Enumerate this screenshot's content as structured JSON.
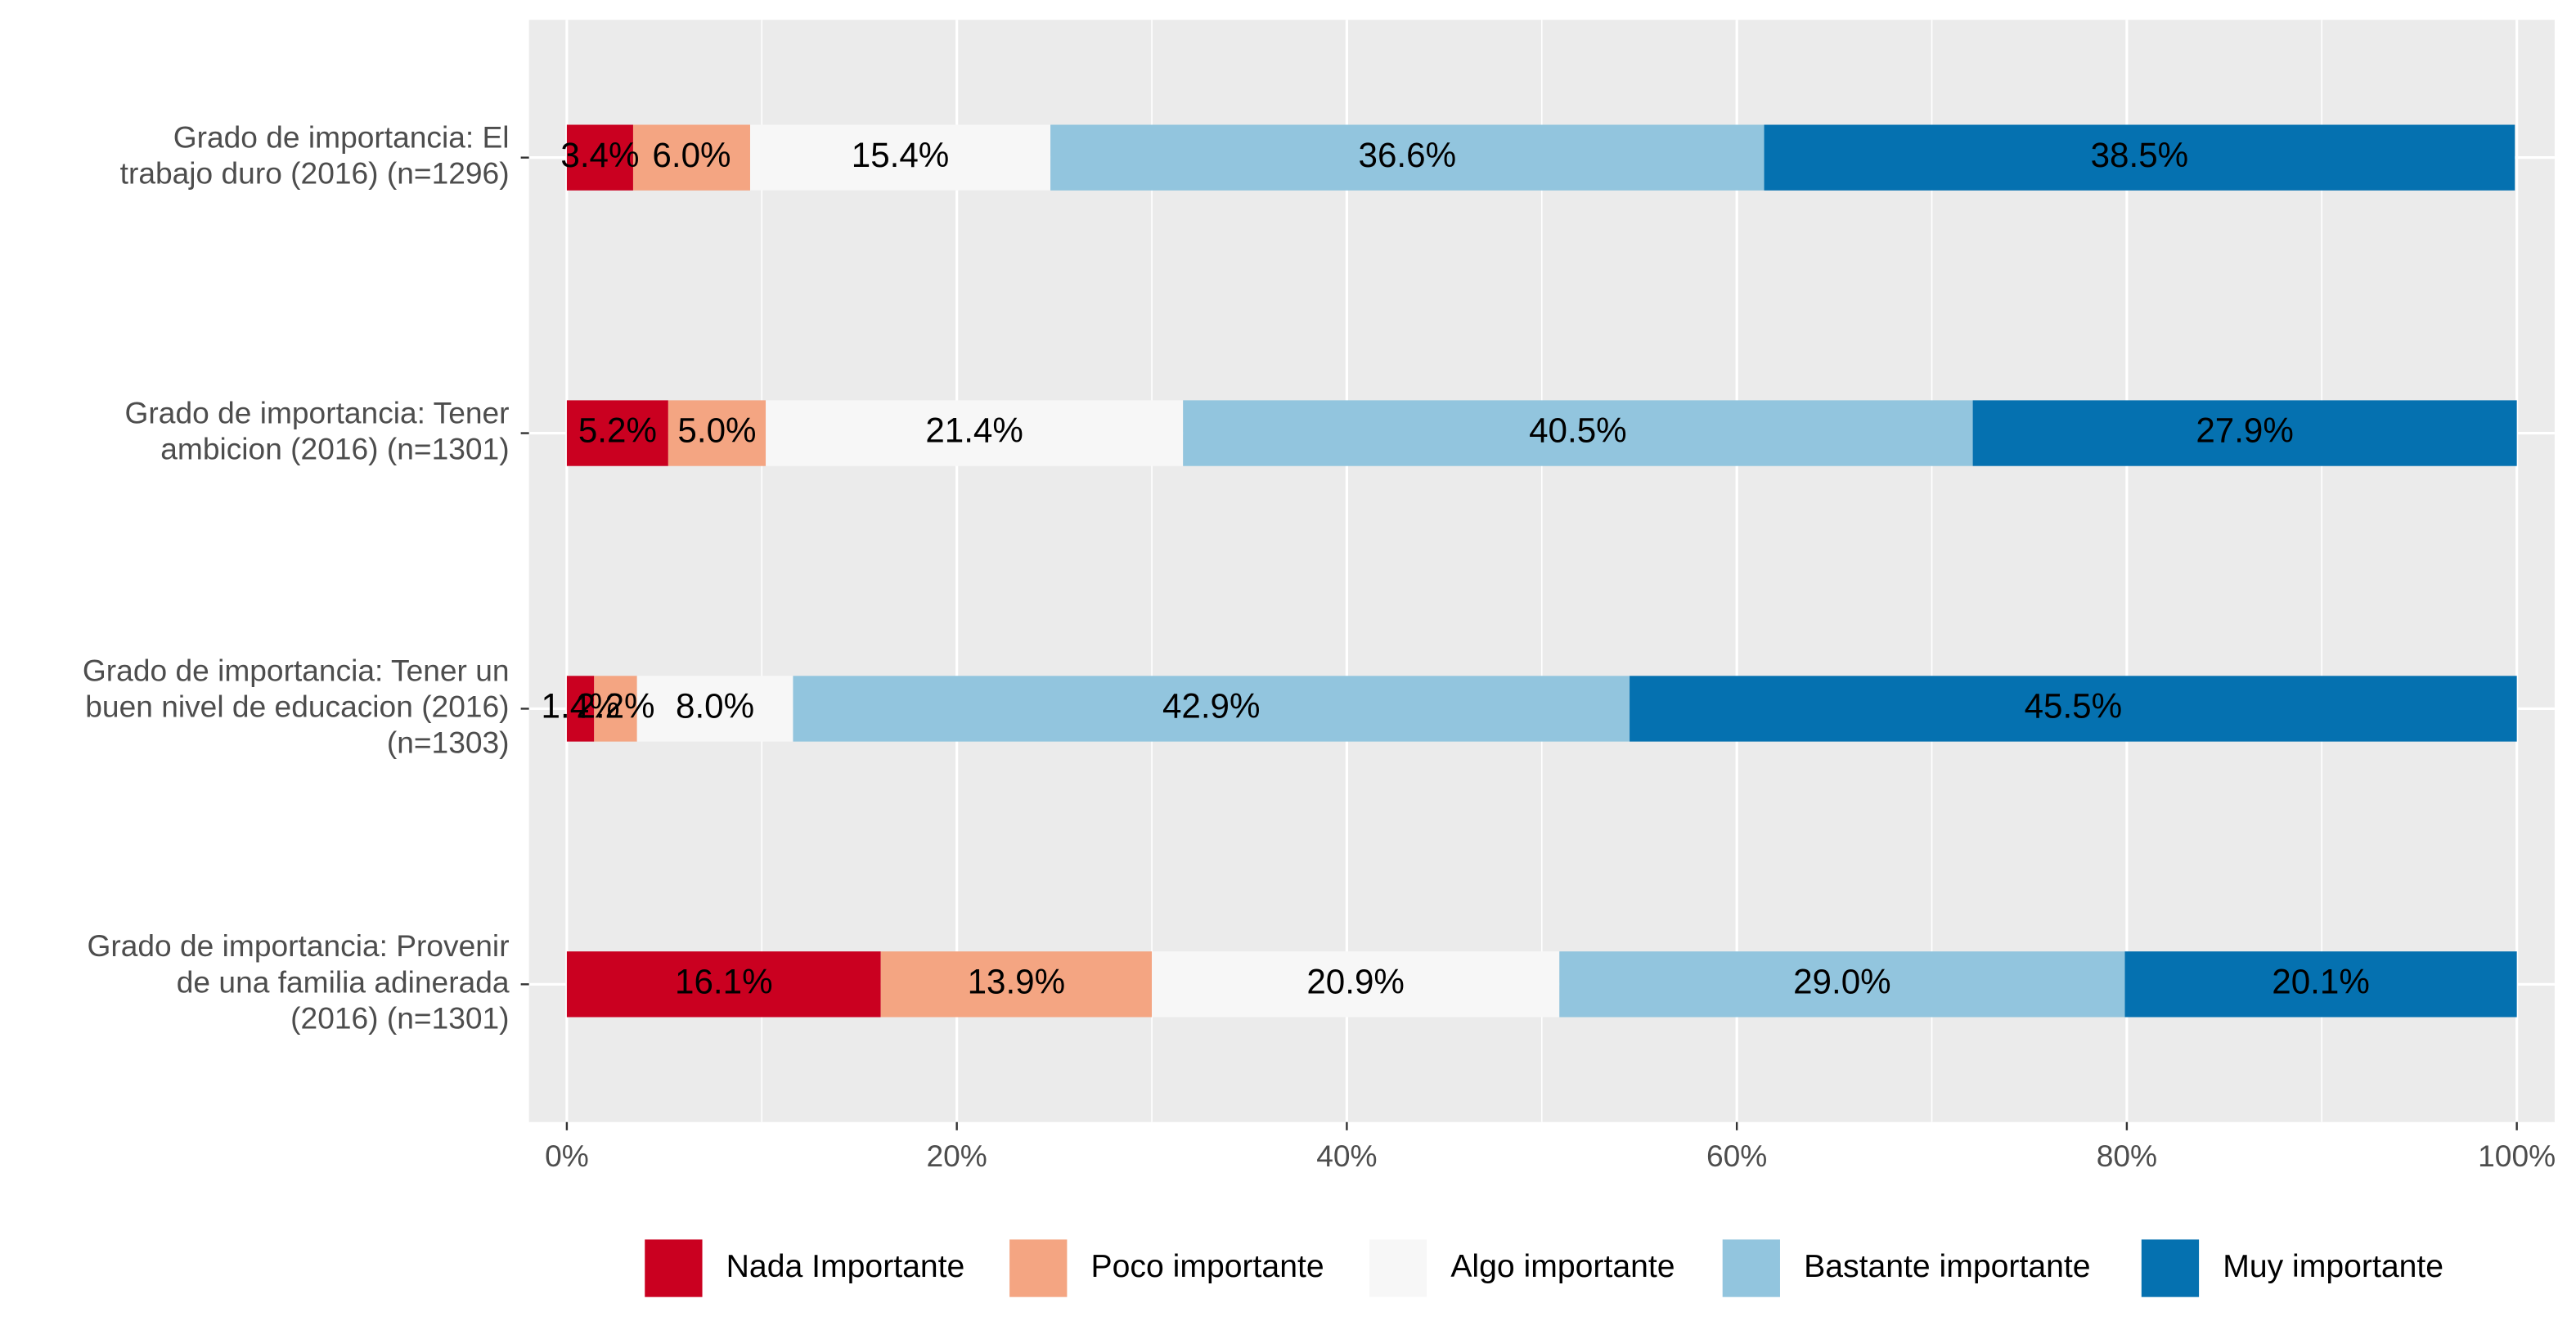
{
  "chart_data": {
    "type": "stacked-barh",
    "categories": [
      "Grado de importancia: El\ntrabajo duro (2016) (n=1296)",
      "Grado de importancia: Tener\nambicion (2016) (n=1301)",
      "Grado de importancia: Tener un\nbuen nivel de educacion (2016)\n(n=1303)",
      "Grado de importancia: Provenir\nde una familia adinerada\n(2016) (n=1301)"
    ],
    "series": [
      {
        "name": "Nada Importante",
        "color": "#ca0020",
        "values": [
          3.4,
          5.2,
          1.4,
          16.1
        ],
        "value_labels": [
          "3.4%",
          "5.2%",
          "1.4%",
          "16.1%"
        ]
      },
      {
        "name": "Poco importante",
        "color": "#f4a582",
        "values": [
          6.0,
          5.0,
          2.2,
          13.9
        ],
        "value_labels": [
          "6.0%",
          "5.0%",
          "2.2%",
          "13.9%"
        ]
      },
      {
        "name": "Algo importante",
        "color": "#f7f7f7",
        "values": [
          15.4,
          21.4,
          8.0,
          20.9
        ],
        "value_labels": [
          "15.4%",
          "21.4%",
          "8.0%",
          "20.9%"
        ]
      },
      {
        "name": "Bastante importante",
        "color": "#92c5de",
        "values": [
          36.6,
          40.5,
          42.9,
          29.0
        ],
        "value_labels": [
          "36.6%",
          "40.5%",
          "42.9%",
          "29.0%"
        ]
      },
      {
        "name": "Muy importante",
        "color": "#0571b0",
        "values": [
          38.5,
          27.9,
          45.5,
          20.1
        ],
        "value_labels": [
          "38.5%",
          "27.9%",
          "45.5%",
          "20.1%"
        ]
      }
    ],
    "xlim": [
      -1.94,
      101.94
    ],
    "xticks": [
      {
        "value": 0,
        "label": "0%"
      },
      {
        "value": 20,
        "label": "20%"
      },
      {
        "value": 40,
        "label": "40%"
      },
      {
        "value": 60,
        "label": "60%"
      },
      {
        "value": 80,
        "label": "80%"
      },
      {
        "value": 100,
        "label": "100%"
      }
    ],
    "grid": true,
    "legend": "bottom"
  }
}
